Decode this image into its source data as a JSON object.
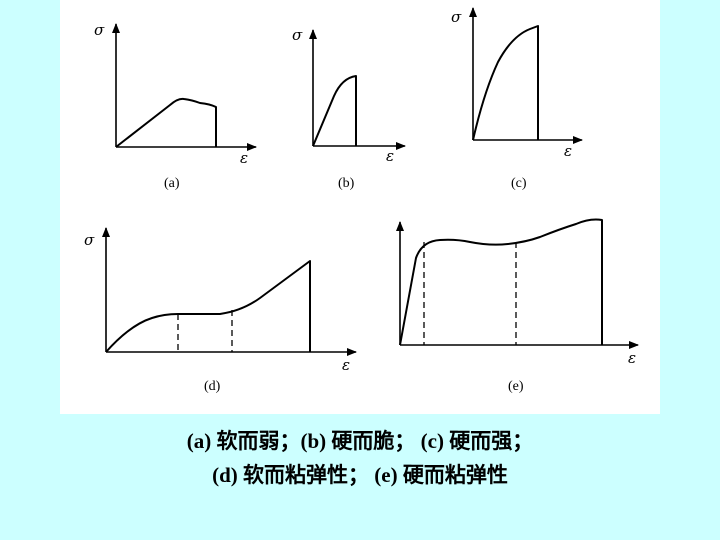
{
  "figure": {
    "stress_symbol": "σ",
    "strain_symbol": "ε",
    "panels": [
      {
        "id": "a",
        "label": "(a)"
      },
      {
        "id": "b",
        "label": "(b)"
      },
      {
        "id": "c",
        "label": "(c)"
      },
      {
        "id": "d",
        "label": "(d)"
      },
      {
        "id": "e",
        "label": "(e)"
      }
    ]
  },
  "caption": {
    "line1": "(a) 软而弱；(b) 硬而脆； (c) 硬而强；",
    "line2": "(d) 软而粘弹性； (e) 硬而粘弹性"
  }
}
